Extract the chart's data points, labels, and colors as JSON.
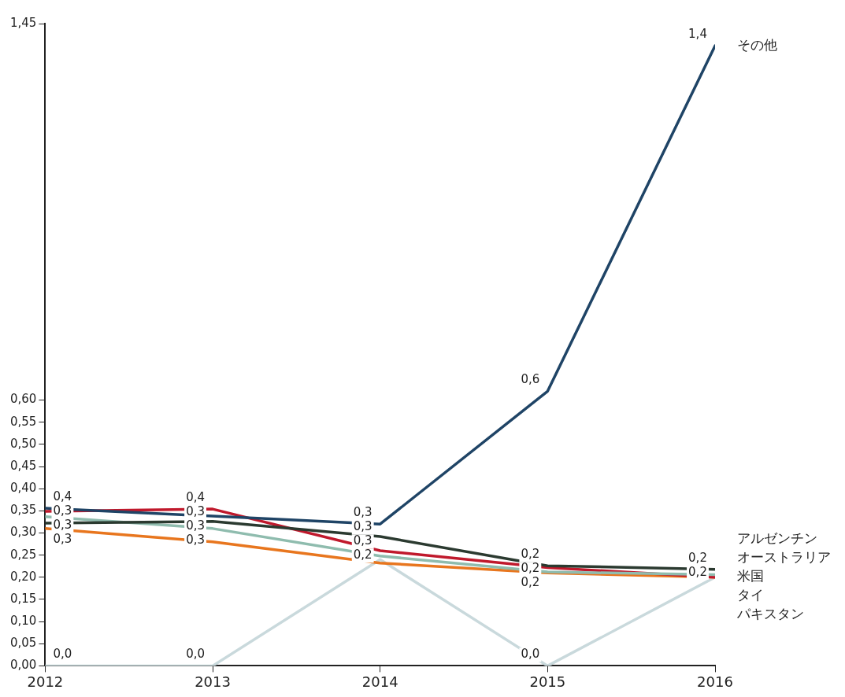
{
  "chart_data": {
    "type": "line",
    "x": [
      2012,
      2013,
      2014,
      2015,
      2016
    ],
    "xlim": [
      2012,
      2016
    ],
    "xticks": [
      2012,
      2013,
      2014,
      2015,
      2016
    ],
    "ylim": [
      0,
      1.45
    ],
    "yticks": [
      {
        "value": 0,
        "label": "0,00"
      },
      {
        "value": 0.05,
        "label": "0,05"
      },
      {
        "value": 0.1,
        "label": "0,10"
      },
      {
        "value": 0.15,
        "label": "0,15"
      },
      {
        "value": 0.2,
        "label": "0,20"
      },
      {
        "value": 0.25,
        "label": "0,25"
      },
      {
        "value": 0.3,
        "label": "0,30"
      },
      {
        "value": 0.35,
        "label": "0,35"
      },
      {
        "value": 0.4,
        "label": "0,40"
      },
      {
        "value": 0.45,
        "label": "0,45"
      },
      {
        "value": 0.5,
        "label": "0,50"
      },
      {
        "value": 0.55,
        "label": "0,55"
      },
      {
        "value": 0.6,
        "label": "0,60"
      },
      {
        "value": 1.45,
        "label": "1,45"
      }
    ],
    "series": [
      {
        "name": "その他",
        "color": "#1f4466",
        "values": [
          0.356,
          0.338,
          0.32,
          0.62,
          1.4
        ],
        "value_labels": [
          "0,4",
          "0,3",
          "0,3",
          "0,6",
          "1,4"
        ]
      },
      {
        "name": "アルゼンチン",
        "color": "#2b3a30",
        "values": [
          0.322,
          0.326,
          0.292,
          0.226,
          0.218
        ],
        "value_labels": [
          "0,3",
          "0,3",
          "0,3",
          "0,2",
          "0,2"
        ]
      },
      {
        "name": "オーストラリア",
        "color": "#8fbcae",
        "values": [
          0.337,
          0.31,
          0.248,
          0.212,
          0.206
        ],
        "value_labels": [
          "0,3",
          "0,3",
          "0,2",
          "0,2",
          null
        ]
      },
      {
        "name": "米国",
        "color": "#c0192c",
        "values": [
          0.349,
          0.354,
          0.26,
          0.222,
          0.2
        ],
        "value_labels": [
          "0,3",
          "0,4",
          "0,3",
          "0,2",
          "0,2"
        ]
      },
      {
        "name": "タイ",
        "color": "#e8761e",
        "values": [
          0.31,
          0.28,
          0.232,
          0.21,
          0.2
        ]
      },
      {
        "name": "パキスタン",
        "color": "#c9d9dc",
        "values": [
          0,
          0,
          0.24,
          0,
          0.2
        ],
        "value_labels": [
          "0,0",
          "0,0",
          null,
          "0,0",
          null
        ]
      }
    ],
    "marker": "none",
    "line_style": "solid",
    "grid": false,
    "legend": false
  }
}
